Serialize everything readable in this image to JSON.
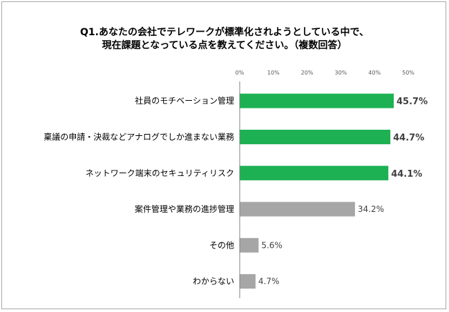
{
  "title_line1": "Q1.あなたの会社でテレワークが標準化されようとしている中で、",
  "title_line2": "現在課題となっている点を教えてください。（複数回答）",
  "colors": {
    "highlight": "#1db153",
    "normal": "#a6a6a6",
    "axis": "#808080"
  },
  "chart_data": {
    "type": "bar",
    "orientation": "horizontal",
    "categories": [
      "社員のモチベーション管理",
      "稟議の申請・決裁などアナログでしか進まない業務",
      "ネットワーク端末のセキュリティリスク",
      "案件管理や業務の進捗管理",
      "その他",
      "わからない"
    ],
    "values": [
      45.7,
      44.7,
      44.1,
      34.2,
      5.6,
      4.7
    ],
    "value_labels": [
      "45.7%",
      "44.7%",
      "44.1%",
      "34.2%",
      "5.6%",
      "4.7%"
    ],
    "highlighted": [
      true,
      true,
      true,
      false,
      false,
      false
    ],
    "xlim": [
      0,
      50
    ],
    "ticks": [
      0,
      10,
      20,
      30,
      40,
      50
    ],
    "tick_labels": [
      "0%",
      "10%",
      "20%",
      "30%",
      "40%",
      "50%"
    ],
    "grid": false,
    "legend": "none"
  }
}
